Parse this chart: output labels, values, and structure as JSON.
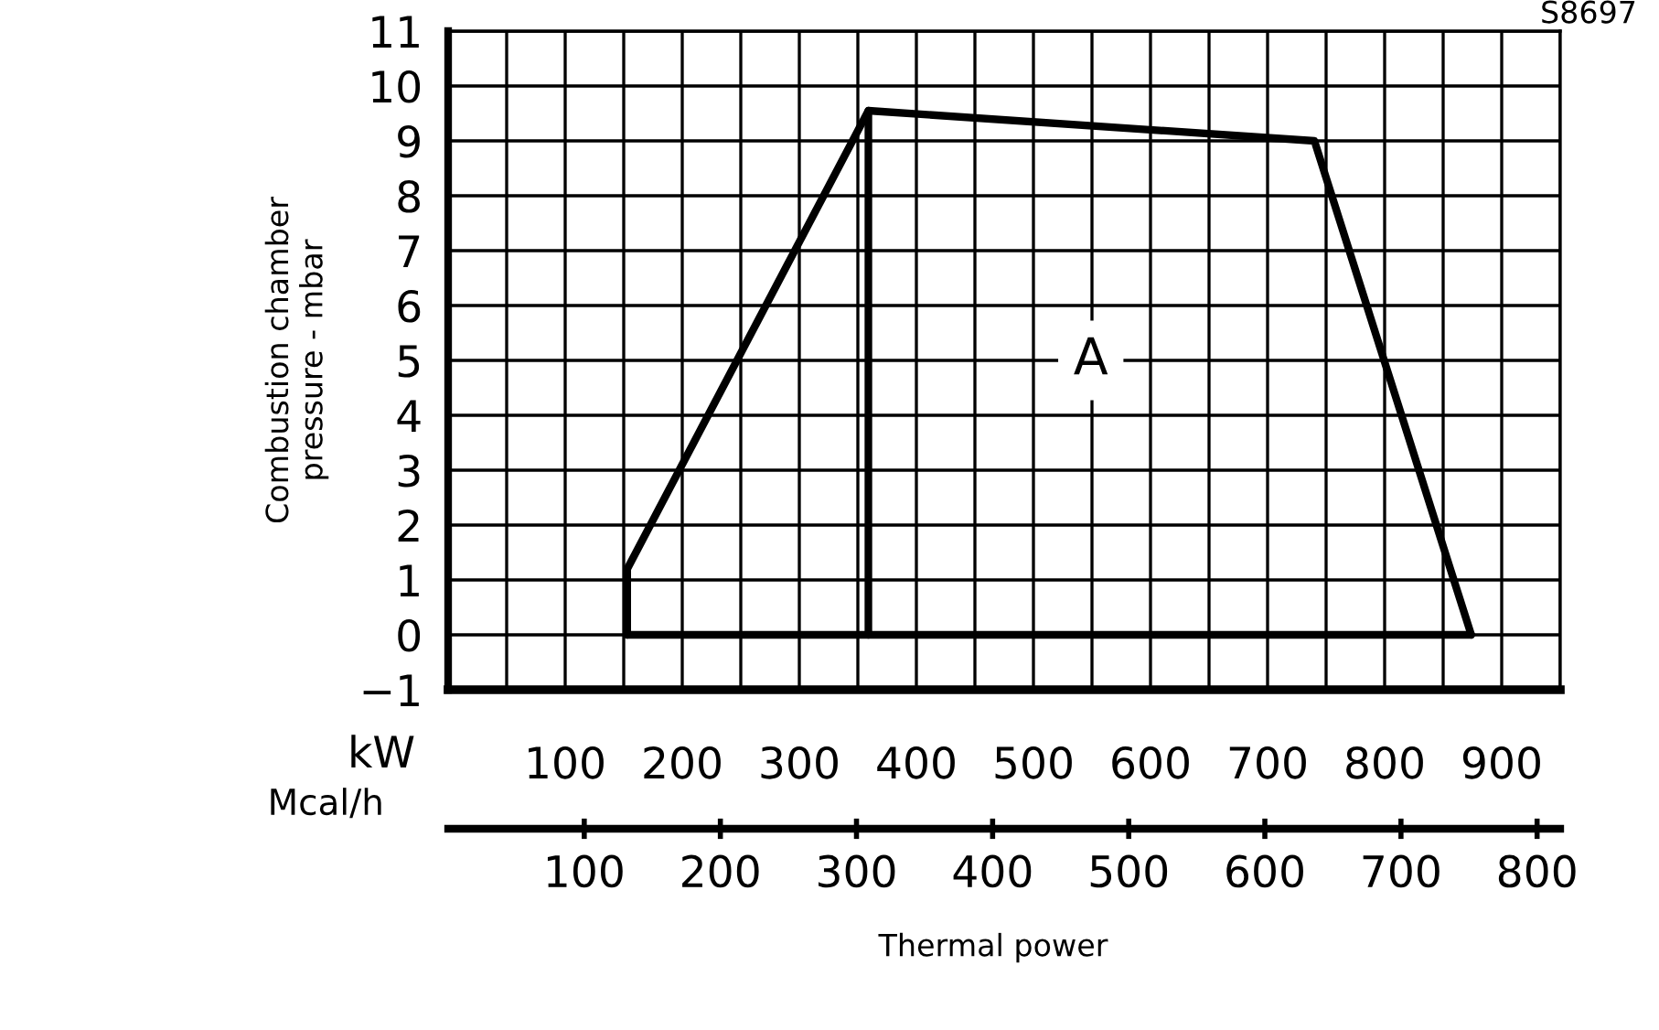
{
  "chart_data": {
    "type": "line",
    "xlabel": "kW",
    "x2label": "Mcal/h",
    "ylabel": "Combustion chamber\npressure - mbar",
    "series": [
      {
        "color": "#000000",
        "x": [
          153,
          153,
          359,
          740,
          874
        ],
        "values": [
          0,
          1.2,
          9.55,
          9.0,
          0
        ]
      },
      {
        "color": "#000000",
        "x": [
          153,
          874
        ],
        "values": [
          0,
          0
        ]
      },
      {
        "color": "#000000",
        "x": [
          359,
          359
        ],
        "values": [
          0,
          9.55
        ]
      }
    ],
    "xlim": [
      0,
      950
    ],
    "xticks": [
      {
        "value": 50,
        "label": null
      },
      100,
      {
        "value": 150,
        "label": null
      },
      200,
      {
        "value": 250,
        "label": null
      },
      300,
      {
        "value": 350,
        "label": null
      },
      400,
      {
        "value": 450,
        "label": null
      },
      500,
      {
        "value": 550,
        "label": null
      },
      600,
      {
        "value": 650,
        "label": null
      },
      700,
      {
        "value": 750,
        "label": null
      },
      800,
      {
        "value": 850,
        "label": null
      },
      900,
      {
        "value": 950,
        "label": null
      }
    ],
    "ylim": [
      -1,
      11
    ],
    "yticks": [
      {
        "value": -1,
        "label": "−1"
      },
      0,
      1,
      2,
      3,
      4,
      5,
      6,
      7,
      8,
      9,
      10,
      11
    ],
    "x2lim": [
      0,
      817
    ],
    "x2ticks": [
      100,
      200,
      300,
      400,
      500,
      600,
      700,
      800
    ],
    "ref_lines": [
      {
        "axis": "y",
        "value": -1,
        "color": "#000000"
      }
    ],
    "grid": true,
    "marker": "none",
    "line_style": "solid",
    "annotations": [
      {
        "text": "A",
        "x": 549,
        "y": 5
      },
      "Thermal power",
      "S8697"
    ]
  }
}
